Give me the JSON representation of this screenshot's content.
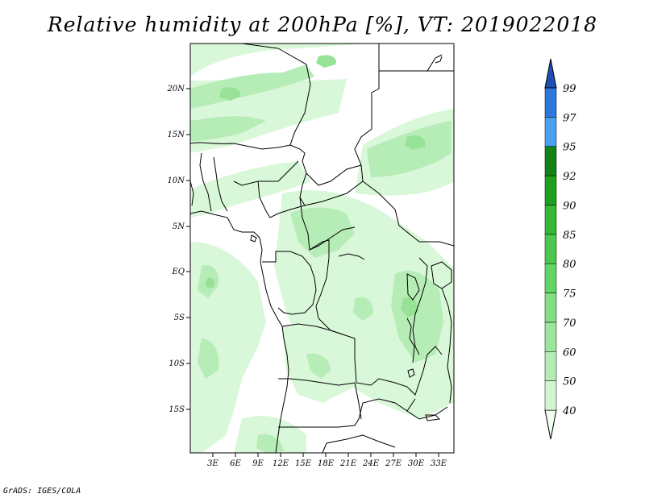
{
  "title": "Relative humidity at 200hPa [%], VT: 2019022018",
  "credit": "GrADS: IGES/COLA",
  "map": {
    "variable": "Relative humidity",
    "level": "200hPa",
    "units": "%",
    "valid_time": "2019022018",
    "lon_range": [
      0,
      35
    ],
    "lat_range": [
      -20,
      25
    ],
    "lon_ticks": [
      "3E",
      "6E",
      "9E",
      "12E",
      "15E",
      "18E",
      "21E",
      "24E",
      "27E",
      "30E",
      "33E"
    ],
    "lat_ticks": [
      "20N",
      "15N",
      "10N",
      "5N",
      "EQ",
      "5S",
      "10S",
      "15S"
    ]
  },
  "colorbar": {
    "levels": [
      "40",
      "50",
      "60",
      "70",
      "75",
      "80",
      "85",
      "90",
      "92",
      "95",
      "97",
      "99"
    ],
    "colors": [
      "#f0fff0",
      "#d2f5d2",
      "#b4ecb4",
      "#9ae69a",
      "#82e082",
      "#62d662",
      "#4cc84c",
      "#36b836",
      "#1ea01e",
      "#148214",
      "#4aa0f0",
      "#2c78dc",
      "#1e50b4"
    ]
  }
}
